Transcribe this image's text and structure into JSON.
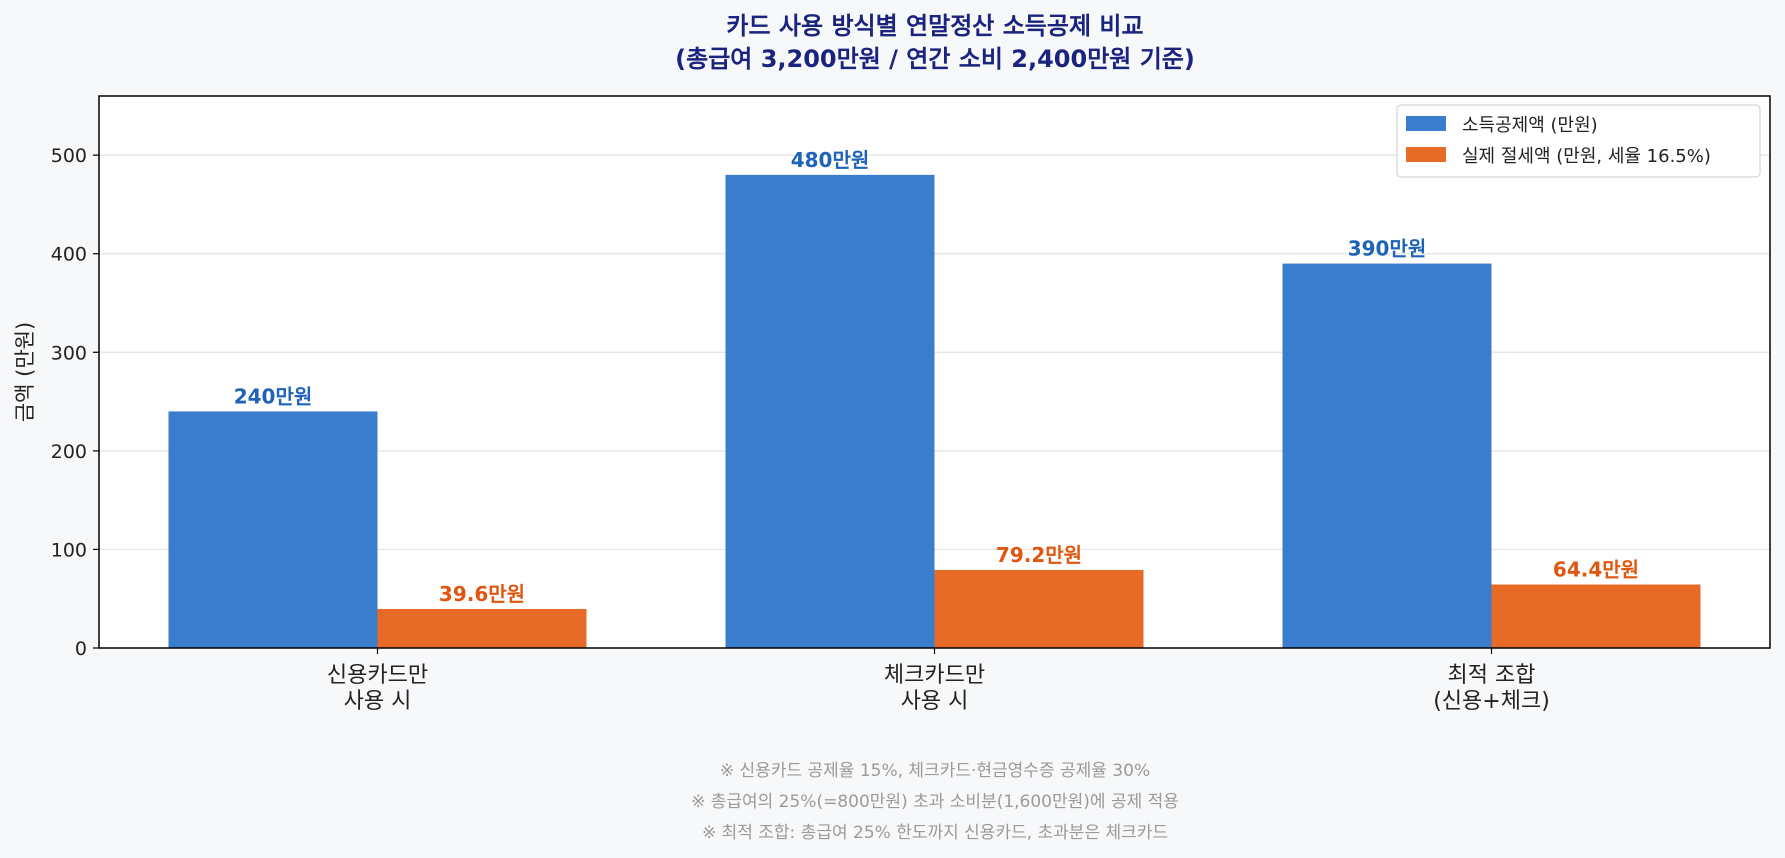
{
  "chart_data": {
    "type": "bar",
    "title_lines": [
      "카드 사용 방식별 연말정산 소득공제 비교",
      "(총급여 3,200만원 / 연간 소비 2,400만원 기준)"
    ],
    "xlabel": "",
    "ylabel": "금액 (만원)",
    "ylim": [
      0,
      560
    ],
    "yticks": [
      0,
      100,
      200,
      300,
      400,
      500
    ],
    "grid": "horizontal",
    "legend_position": "top-right",
    "categories": [
      [
        "신용카드만",
        "사용 시"
      ],
      [
        "체크카드만",
        "사용 시"
      ],
      [
        "최적 조합",
        "(신용+체크)"
      ]
    ],
    "series": [
      {
        "name": "소득공제액 (만원)",
        "color": "#3a7dcc",
        "label_color": "#1f63b8",
        "values": [
          240,
          480,
          390
        ],
        "value_labels": [
          "240만원",
          "480만원",
          "390만원"
        ]
      },
      {
        "name": "실제 절세액 (만원, 세율 16.5%)",
        "color": "#e86a27",
        "label_color": "#e0560f",
        "values": [
          39.6,
          79.2,
          64.4
        ],
        "value_labels": [
          "39.6만원",
          "79.2만원",
          "64.4만원"
        ]
      }
    ],
    "notes": [
      "※ 신용카드 공제율 15%, 체크카드·현금영수증 공제율 30%",
      "※ 총급여의 25%(=800만원) 초과 소비분(1,600만원)에 공제 적용",
      "※ 최적 조합: 총급여 25% 한도까지 신용카드, 초과분은 체크카드"
    ],
    "colors": {
      "title": "#1a237e",
      "axis": "#000000",
      "text": "#222222",
      "grid": "#e3e3e3",
      "note": "#9a9a9a",
      "background": "#f7f8fa",
      "plot_background": "#ffffff"
    }
  }
}
